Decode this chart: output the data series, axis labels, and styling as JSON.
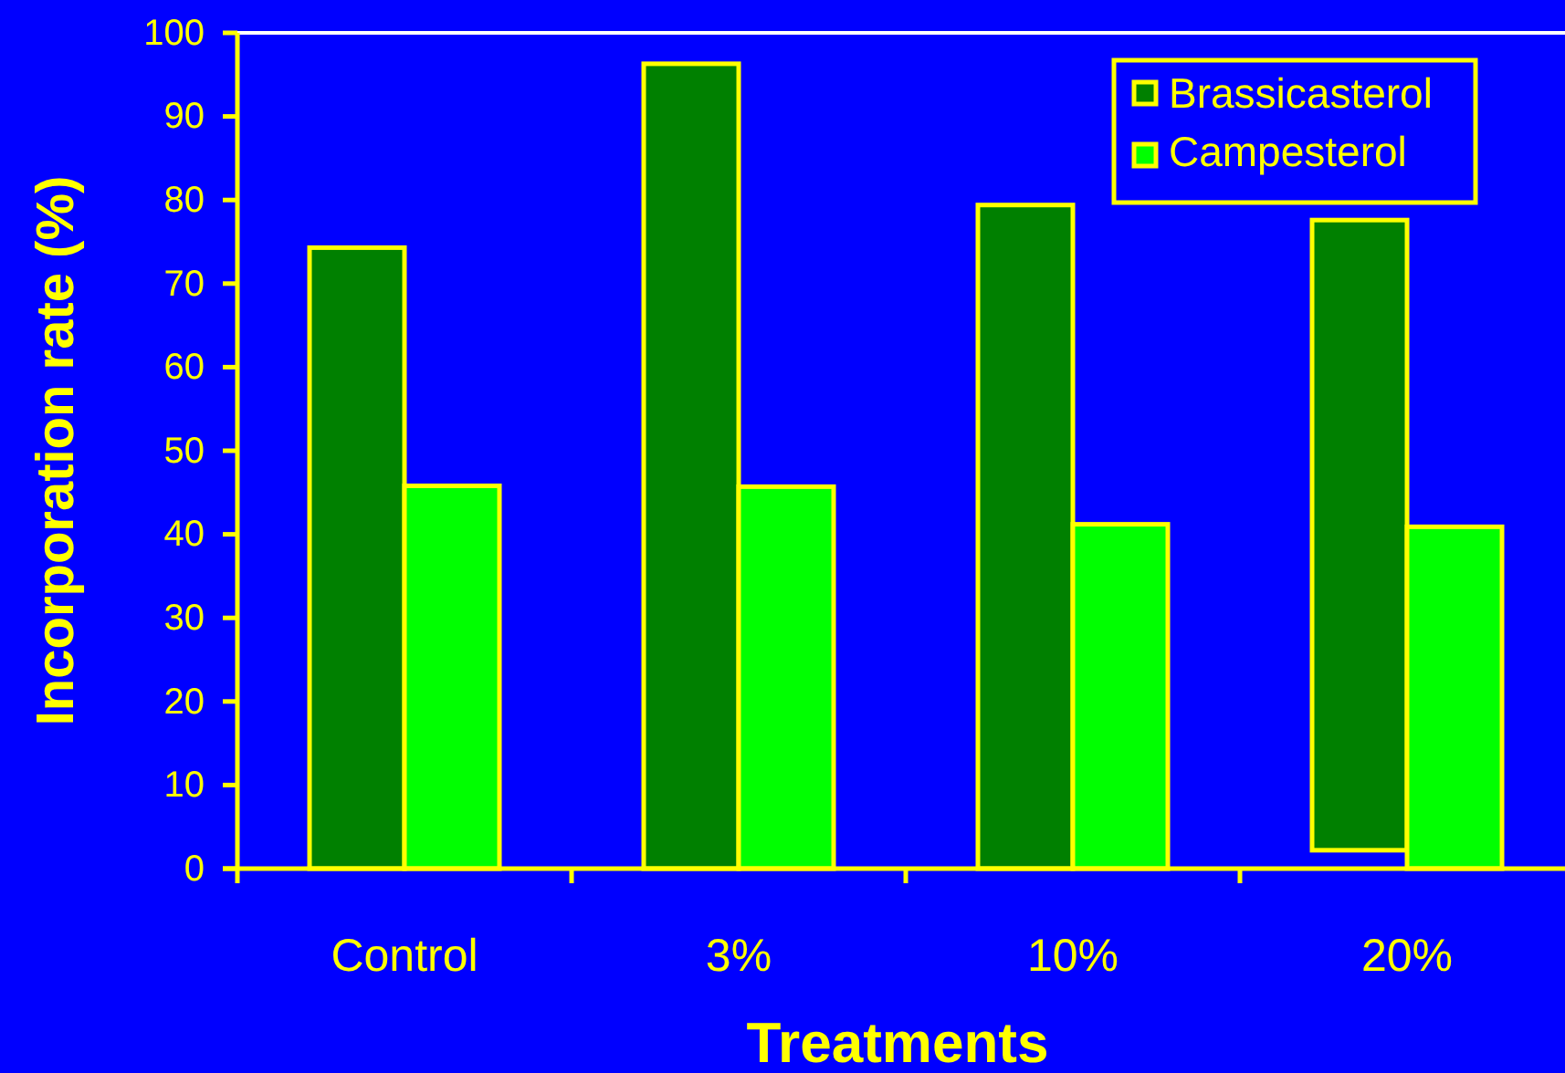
{
  "chart_data": {
    "type": "bar",
    "xlabel": "Treatments",
    "ylabel": "Incorporation rate (%)",
    "categories": [
      "Control",
      "3%",
      "10%",
      "20%"
    ],
    "series": [
      {
        "name": "Brassicasterol",
        "color": "#008000",
        "values": [
          74.3,
          96.3,
          79.4,
          75.4
        ],
        "base": [
          0,
          0,
          0,
          2.2
        ]
      },
      {
        "name": "Campesterol",
        "color": "#00ff00",
        "values": [
          45.8,
          45.7,
          41.2,
          40.9
        ]
      }
    ],
    "ylim": [
      0,
      100
    ],
    "yticks": [
      0,
      10,
      20,
      30,
      40,
      50,
      60,
      70,
      80,
      90,
      100
    ],
    "grid": false,
    "legend": "top right"
  }
}
